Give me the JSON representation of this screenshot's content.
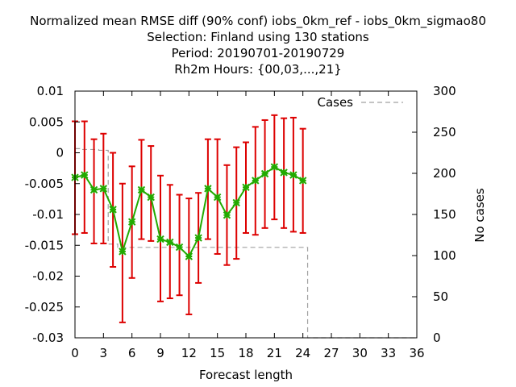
{
  "chart_data": {
    "type": "line",
    "title": [
      "Normalized mean RMSE diff (90% conf) iobs_0km_ref - iobs_0km_sigmao80",
      "Selection: Finland using   130 stations",
      "Period: 20190701-20190729",
      "Rh2m   Hours: {00,03,...,21}"
    ],
    "xlabel": "Forecast length",
    "ylabel": "",
    "y2label": "No cases",
    "xlim": [
      0,
      36
    ],
    "ylim": [
      -0.03,
      0.01
    ],
    "y2lim": [
      0,
      300
    ],
    "xticks": [
      "0",
      "3",
      "6",
      "9",
      "12",
      "15",
      "18",
      "21",
      "24",
      "27",
      "30",
      "33",
      "36"
    ],
    "yticks": [
      "0.01",
      "0.005",
      "0",
      "-0.005",
      "-0.01",
      "-0.015",
      "-0.02",
      "-0.025",
      "-0.03"
    ],
    "y2ticks": [
      "300",
      "250",
      "200",
      "150",
      "100",
      "50",
      "0"
    ],
    "legend": {
      "label": "Cases",
      "placement": "top-right"
    },
    "colors": {
      "line": "#22aa00",
      "marker": "#22aa00",
      "errorbar": "#dd0000",
      "cases": "#a0a0a0"
    },
    "series": [
      {
        "x": [
          0,
          1,
          2,
          3,
          4,
          5,
          6,
          7,
          8,
          9,
          10,
          11,
          12,
          13,
          14,
          15,
          16,
          17,
          18,
          19,
          20,
          21,
          22,
          23,
          24
        ],
        "y": [
          -0.004,
          -0.0036,
          -0.006,
          -0.0058,
          -0.0092,
          -0.016,
          -0.0112,
          -0.006,
          -0.0072,
          -0.014,
          -0.0145,
          -0.0153,
          -0.0168,
          -0.0138,
          -0.0058,
          -0.0072,
          -0.0101,
          -0.0081,
          -0.0056,
          -0.0045,
          -0.0034,
          -0.0023,
          -0.0032,
          -0.0036,
          -0.0045
        ],
        "err_low": [
          -0.0132,
          -0.013,
          -0.0147,
          -0.0147,
          -0.0185,
          -0.0275,
          -0.0203,
          -0.014,
          -0.0143,
          -0.0241,
          -0.0236,
          -0.0231,
          -0.0262,
          -0.0211,
          -0.014,
          -0.0164,
          -0.0182,
          -0.0172,
          -0.013,
          -0.0133,
          -0.0122,
          -0.0108,
          -0.0122,
          -0.0128,
          -0.013
        ],
        "err_high": [
          0.0051,
          0.0051,
          0.0022,
          0.0031,
          0.0,
          -0.005,
          -0.0022,
          0.0021,
          0.0011,
          -0.0037,
          -0.0052,
          -0.0068,
          -0.0074,
          -0.0065,
          0.0022,
          0.0022,
          -0.002,
          0.0009,
          0.0017,
          0.0042,
          0.0053,
          0.0061,
          0.0056,
          0.0057,
          0.0039
        ]
      }
    ],
    "cases": {
      "x": [
        0,
        1,
        2,
        3,
        4,
        5,
        6,
        7,
        8,
        9,
        10,
        11,
        12,
        13,
        14,
        15,
        16,
        17,
        18,
        19,
        20,
        21,
        22,
        23,
        24,
        25,
        26,
        27,
        28,
        29,
        30,
        31,
        32,
        33,
        34,
        35,
        36
      ],
      "values": [
        230,
        229,
        229,
        228,
        114,
        110,
        110,
        110,
        110,
        110,
        110,
        110,
        110,
        110,
        110,
        110,
        110,
        110,
        110,
        110,
        110,
        110,
        110,
        110,
        110,
        0,
        0,
        0,
        0,
        0,
        0,
        0,
        0,
        0,
        0,
        0,
        0
      ]
    }
  }
}
